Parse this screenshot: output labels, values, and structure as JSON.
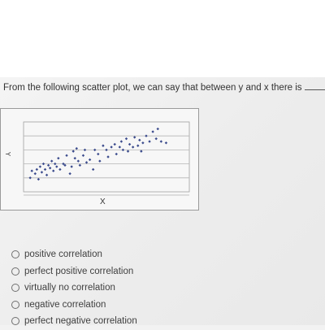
{
  "question": {
    "text": "From the following scatter plot, we can say that between y and x there is",
    "trailing": "."
  },
  "chart_data": {
    "type": "scatter",
    "title": "",
    "xlabel": "X",
    "ylabel": "Y",
    "xlim": [
      0,
      10
    ],
    "ylim": [
      0,
      5
    ],
    "grid": true,
    "marker_color": "#3a4a8c",
    "points": [
      [
        0.4,
        1.0
      ],
      [
        0.5,
        1.5
      ],
      [
        0.7,
        1.3
      ],
      [
        0.8,
        1.6
      ],
      [
        0.9,
        0.9
      ],
      [
        1.0,
        1.8
      ],
      [
        1.1,
        1.4
      ],
      [
        1.2,
        2.0
      ],
      [
        1.3,
        1.6
      ],
      [
        1.4,
        1.2
      ],
      [
        1.5,
        1.9
      ],
      [
        1.6,
        1.7
      ],
      [
        1.7,
        2.2
      ],
      [
        1.8,
        1.5
      ],
      [
        1.9,
        2.0
      ],
      [
        2.0,
        1.8
      ],
      [
        2.1,
        2.4
      ],
      [
        2.2,
        1.6
      ],
      [
        2.4,
        2.0
      ],
      [
        2.5,
        1.9
      ],
      [
        2.6,
        2.6
      ],
      [
        2.8,
        1.3
      ],
      [
        2.9,
        1.8
      ],
      [
        3.0,
        2.9
      ],
      [
        3.1,
        2.4
      ],
      [
        3.2,
        3.1
      ],
      [
        3.3,
        2.2
      ],
      [
        3.4,
        1.9
      ],
      [
        3.6,
        2.6
      ],
      [
        3.7,
        3.0
      ],
      [
        3.8,
        2.1
      ],
      [
        4.0,
        2.3
      ],
      [
        4.2,
        1.6
      ],
      [
        4.3,
        3.0
      ],
      [
        4.5,
        2.7
      ],
      [
        4.6,
        2.2
      ],
      [
        4.8,
        3.3
      ],
      [
        5.0,
        3.0
      ],
      [
        5.1,
        2.5
      ],
      [
        5.3,
        3.2
      ],
      [
        5.5,
        3.4
      ],
      [
        5.6,
        2.7
      ],
      [
        5.8,
        3.2
      ],
      [
        5.9,
        3.6
      ],
      [
        6.0,
        3.0
      ],
      [
        6.2,
        3.8
      ],
      [
        6.3,
        2.9
      ],
      [
        6.4,
        3.4
      ],
      [
        6.6,
        3.2
      ],
      [
        6.7,
        3.9
      ],
      [
        6.9,
        3.3
      ],
      [
        7.0,
        3.7
      ],
      [
        7.1,
        2.9
      ],
      [
        7.2,
        3.5
      ],
      [
        7.4,
        4.0
      ],
      [
        7.6,
        3.6
      ],
      [
        7.8,
        4.3
      ],
      [
        8.0,
        3.8
      ],
      [
        8.1,
        4.5
      ],
      [
        8.3,
        3.6
      ],
      [
        8.6,
        3.5
      ]
    ]
  },
  "options": [
    {
      "label": "positive correlation"
    },
    {
      "label": "perfect positive correlation"
    },
    {
      "label": "virtually no correlation"
    },
    {
      "label": "negative correlation"
    },
    {
      "label": "perfect negative correlation"
    }
  ]
}
